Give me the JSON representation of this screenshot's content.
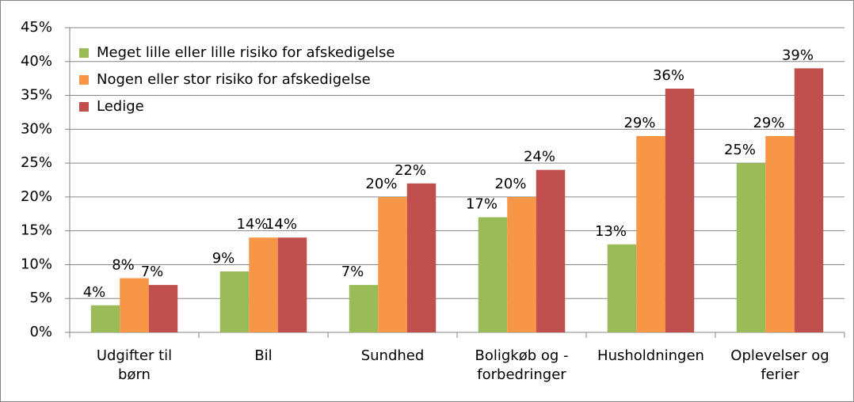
{
  "chart_data": {
    "type": "bar",
    "categories": [
      "Udgifter til børn",
      "Bil",
      "Sundhed",
      "Boligkøb og - forbedringer",
      "Husholdningen",
      "Oplevelser og ferier"
    ],
    "series": [
      {
        "name": "Meget lille eller lille risiko for afskedigelse",
        "color": "#9bbb59",
        "values": [
          4,
          9,
          7,
          17,
          13,
          25
        ],
        "value_labels": [
          "4%",
          "9%",
          "7%",
          "17%",
          "13%",
          "25%"
        ]
      },
      {
        "name": "Nogen eller stor risiko for afskedigelse",
        "color": "#f79646",
        "values": [
          8,
          14,
          20,
          20,
          29,
          29
        ],
        "value_labels": [
          "8%",
          "14%",
          "20%",
          "20%",
          "29%",
          "29%"
        ]
      },
      {
        "name": "Ledige",
        "color": "#c0504d",
        "values": [
          7,
          14,
          22,
          24,
          36,
          39
        ],
        "value_labels": [
          "7%",
          "14%",
          "22%",
          "24%",
          "36%",
          "39%"
        ]
      }
    ],
    "ylim": [
      0,
      45
    ],
    "yticks": [
      {
        "value": 0,
        "label": "0%"
      },
      {
        "value": 5,
        "label": "5%"
      },
      {
        "value": 10,
        "label": "10%"
      },
      {
        "value": 15,
        "label": "15%"
      },
      {
        "value": 20,
        "label": "20%"
      },
      {
        "value": 25,
        "label": "25%"
      },
      {
        "value": 30,
        "label": "30%"
      },
      {
        "value": 35,
        "label": "35%"
      },
      {
        "value": 40,
        "label": "40%"
      },
      {
        "value": 45,
        "label": "45%"
      }
    ],
    "grid": true,
    "legend": "top-left"
  }
}
